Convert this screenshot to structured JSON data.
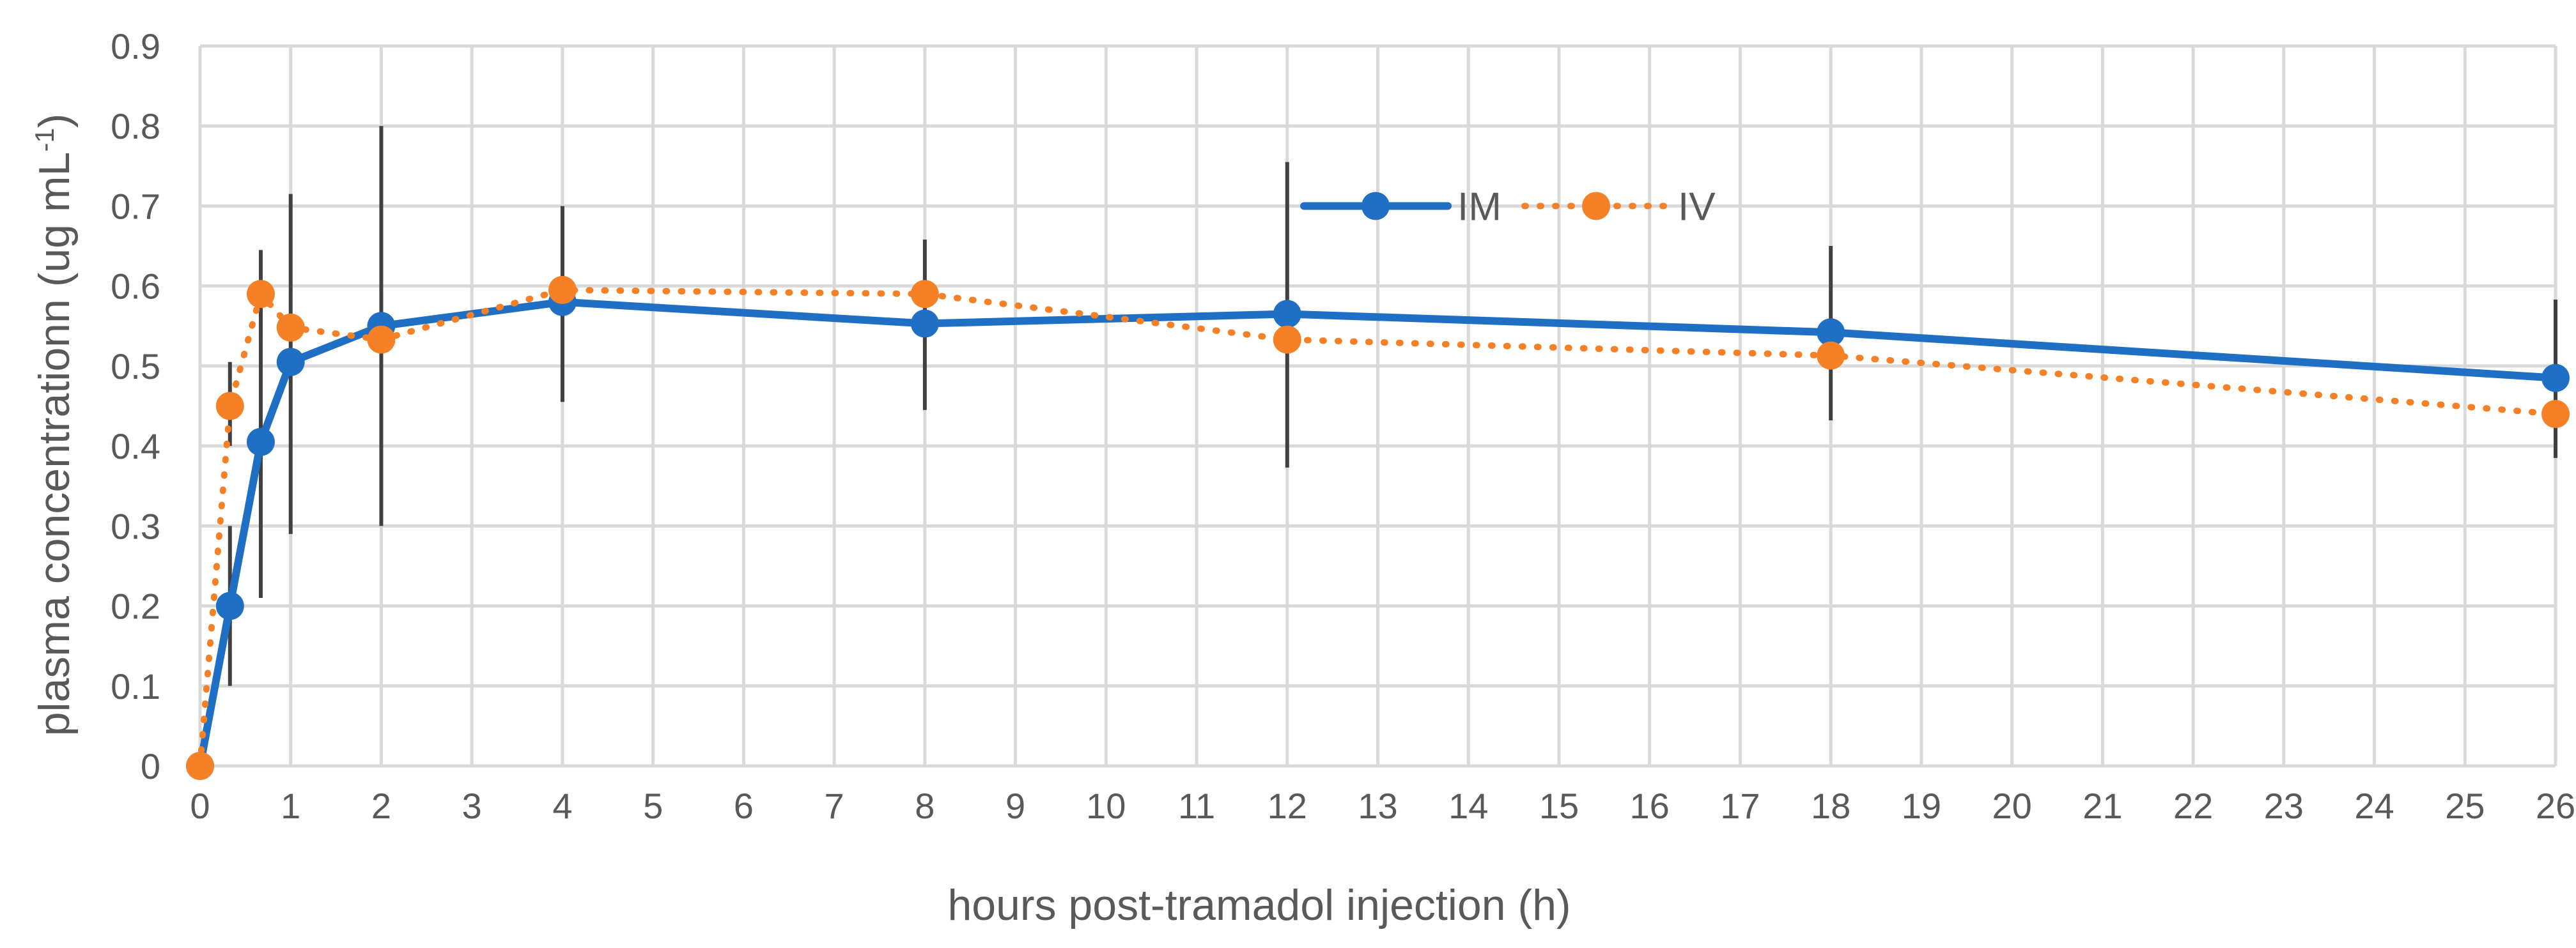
{
  "chart_data": {
    "type": "line",
    "title": "",
    "xlabel": "hours post-tramadol injection (h)",
    "ylabel_main": "plasma concentrationn (ug mL",
    "ylabel_sup": "-1",
    "ylabel_close": ")",
    "xlim": [
      0,
      26
    ],
    "ylim": [
      0,
      0.9
    ],
    "x_ticks": [
      0,
      1,
      2,
      3,
      4,
      5,
      6,
      7,
      8,
      9,
      10,
      11,
      12,
      13,
      14,
      15,
      16,
      17,
      18,
      19,
      20,
      21,
      22,
      23,
      24,
      25,
      26
    ],
    "y_ticks": [
      "0",
      "0.1",
      "0.2",
      "0.3",
      "0.4",
      "0.5",
      "0.6",
      "0.7",
      "0.8",
      "0.9"
    ],
    "grid": true,
    "legend_position": "top-center",
    "series": [
      {
        "name": "IM",
        "color": "#1f6fc5",
        "line_style": "solid",
        "x": [
          0,
          0.33,
          0.67,
          1,
          2,
          4,
          8,
          12,
          18,
          26
        ],
        "y": [
          0,
          0.2,
          0.405,
          0.505,
          0.55,
          0.58,
          0.553,
          0.565,
          0.542,
          0.485
        ],
        "err_low": [
          0,
          0.1,
          0.21,
          0.29,
          0.3,
          0.455,
          0.445,
          0.373,
          0.432,
          0.385
        ],
        "err_high": [
          0,
          0.3,
          0.6,
          0.715,
          0.8,
          0.7,
          0.658,
          0.755,
          0.65,
          0.583
        ]
      },
      {
        "name": "IV",
        "color": "#f58025",
        "line_style": "dotted",
        "x": [
          0,
          0.33,
          0.67,
          1,
          2,
          4,
          8,
          12,
          18,
          26
        ],
        "y": [
          0,
          0.45,
          0.59,
          0.548,
          0.533,
          0.595,
          0.59,
          0.533,
          0.513,
          0.44
        ],
        "err_low": [
          0,
          0.4,
          0.535,
          null,
          null,
          null,
          null,
          null,
          null,
          null
        ],
        "err_high": [
          0,
          0.505,
          0.645,
          null,
          null,
          null,
          null,
          null,
          null,
          null
        ]
      }
    ]
  }
}
